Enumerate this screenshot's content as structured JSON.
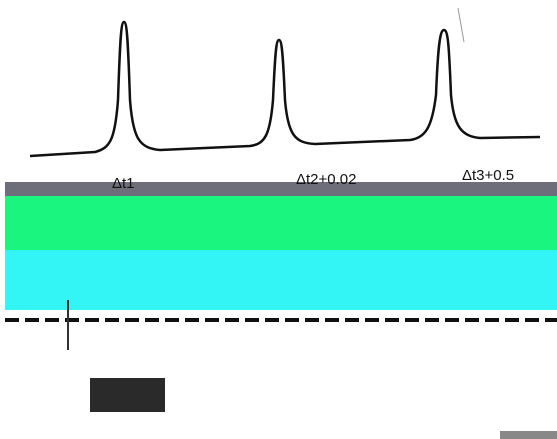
{
  "labels": [
    "Δt1",
    "Δt2+0.02",
    "Δt3+0.5"
  ]
}
